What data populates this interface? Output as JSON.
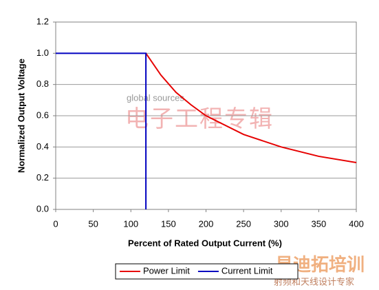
{
  "chart_data": {
    "type": "line",
    "xlabel": "Percent of Rated Output Current (%)",
    "ylabel": "Normalized Output Voltage",
    "series": [
      {
        "name": "Power Limit",
        "color": "#e60000",
        "x": [
          120,
          140,
          160,
          180,
          200,
          250,
          300,
          350,
          400
        ],
        "values": [
          1.0,
          0.86,
          0.75,
          0.67,
          0.6,
          0.48,
          0.4,
          0.34,
          0.3
        ]
      },
      {
        "name": "Current Limit",
        "color": "#0000c0",
        "x": [
          0,
          120,
          120
        ],
        "values": [
          1.0,
          1.0,
          0
        ]
      }
    ],
    "xlim": [
      0,
      400
    ],
    "xticks": [
      0,
      50,
      100,
      150,
      200,
      250,
      300,
      350,
      400
    ],
    "ylim": [
      0,
      1.2
    ],
    "yticks": [
      {
        "value": 0,
        "label": "0.0"
      },
      0.2,
      0.4,
      0.6,
      0.8,
      {
        "value": 1,
        "label": "1.0"
      },
      1.2
    ],
    "grid": true,
    "legend": "bottom",
    "watermarks": [
      "global sources",
      "电子工程专辑",
      "易迪拓培训",
      "射频和天线设计专家"
    ]
  }
}
